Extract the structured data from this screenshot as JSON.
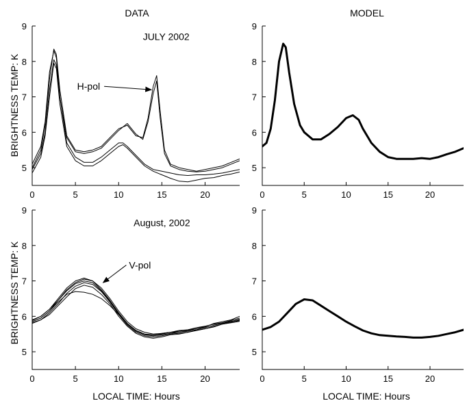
{
  "column_titles": [
    "DATA",
    "MODEL"
  ],
  "ylabel": "BRIGHTNESS TEMP:  K",
  "xlabel": "LOCAL TIME:  Hours",
  "colors": {
    "line": "#000000",
    "axis": "#000000",
    "background": "#ffffff"
  },
  "chart_data": [
    {
      "type": "line",
      "panel": "top-left",
      "title": "DATA",
      "ylabel": "BRIGHTNESS TEMP:  K",
      "xlim": [
        0,
        24
      ],
      "ylim": [
        4.5,
        9
      ],
      "xticks": [
        0,
        5,
        10,
        15,
        20
      ],
      "yticks": [
        5,
        6,
        7,
        8,
        9
      ],
      "annotations": [
        {
          "text": "JULY 2002",
          "x": 15.5,
          "y": 8.6
        },
        {
          "text": "H-pol",
          "x": 5.2,
          "y": 7.2,
          "arrow_to": [
            13.8,
            7.2
          ]
        }
      ],
      "series": [
        {
          "x": [
            0,
            1,
            1.5,
            2,
            2.5,
            2.8,
            3.2,
            4,
            5,
            6,
            7,
            8,
            9,
            10,
            11,
            12,
            12.8,
            13.4,
            14,
            14.4,
            14.8,
            15.3,
            16,
            17,
            18,
            19,
            20,
            21,
            22,
            23,
            24
          ],
          "y": [
            5.0,
            5.5,
            6.2,
            7.5,
            8.35,
            8.2,
            7.2,
            5.9,
            5.5,
            5.45,
            5.5,
            5.6,
            5.85,
            6.1,
            6.2,
            5.9,
            5.85,
            6.4,
            7.3,
            7.6,
            6.6,
            5.5,
            5.1,
            5.0,
            4.95,
            4.9,
            4.95,
            5.0,
            5.05,
            5.15,
            5.25
          ]
        },
        {
          "x": [
            0,
            1,
            1.5,
            2,
            2.5,
            2.8,
            3.2,
            4,
            5,
            6,
            7,
            8,
            9,
            10,
            11,
            12,
            12.8,
            13.4,
            14,
            14.4,
            14.8,
            15.3,
            16,
            17,
            18,
            19,
            20,
            21,
            22,
            23,
            24
          ],
          "y": [
            5.1,
            5.6,
            6.3,
            7.7,
            8.3,
            8.1,
            7.0,
            5.85,
            5.45,
            5.4,
            5.45,
            5.55,
            5.8,
            6.05,
            6.25,
            5.95,
            5.8,
            6.3,
            7.1,
            7.45,
            6.4,
            5.4,
            5.05,
            4.95,
            4.9,
            4.88,
            4.9,
            4.95,
            5.0,
            5.1,
            5.2
          ]
        },
        {
          "x": [
            0,
            1,
            1.5,
            2,
            2.5,
            2.8,
            3.2,
            4,
            5,
            6,
            7,
            8,
            9,
            10,
            10.5,
            11,
            12,
            13,
            14,
            15,
            16,
            17,
            18,
            19,
            20,
            21,
            22,
            23,
            24
          ],
          "y": [
            4.95,
            5.4,
            6.0,
            7.2,
            8.05,
            7.9,
            7.0,
            5.7,
            5.3,
            5.15,
            5.15,
            5.3,
            5.5,
            5.7,
            5.7,
            5.6,
            5.35,
            5.1,
            4.95,
            4.9,
            4.85,
            4.8,
            4.78,
            4.8,
            4.8,
            4.82,
            4.85,
            4.9,
            4.95
          ]
        },
        {
          "x": [
            0,
            1,
            1.5,
            2,
            2.5,
            2.8,
            3.2,
            4,
            5,
            6,
            7,
            8,
            9,
            10,
            10.5,
            11,
            12,
            13,
            14,
            15,
            16,
            17,
            18,
            19,
            20,
            21,
            22,
            23,
            24
          ],
          "y": [
            4.85,
            5.3,
            5.9,
            7.0,
            7.95,
            7.8,
            6.8,
            5.6,
            5.2,
            5.05,
            5.05,
            5.2,
            5.4,
            5.6,
            5.65,
            5.55,
            5.3,
            5.05,
            4.9,
            4.8,
            4.7,
            4.62,
            4.6,
            4.65,
            4.7,
            4.72,
            4.78,
            4.82,
            4.88
          ]
        }
      ]
    },
    {
      "type": "line",
      "panel": "top-right",
      "title": "MODEL",
      "xlim": [
        0,
        24
      ],
      "ylim": [
        4.5,
        9
      ],
      "xticks": [
        0,
        5,
        10,
        15,
        20
      ],
      "yticks": [
        5,
        6,
        7,
        8,
        9
      ],
      "series": [
        {
          "x": [
            0,
            0.5,
            1,
            1.5,
            2,
            2.5,
            2.8,
            3.2,
            3.8,
            4.5,
            5,
            6,
            7,
            8,
            9,
            10,
            10.8,
            11.5,
            12,
            13,
            14,
            15,
            16,
            17,
            18,
            19,
            20,
            21,
            22,
            23,
            24
          ],
          "y": [
            5.6,
            5.7,
            6.1,
            6.9,
            8.0,
            8.5,
            8.4,
            7.7,
            6.8,
            6.2,
            6.0,
            5.8,
            5.8,
            5.95,
            6.15,
            6.4,
            6.48,
            6.35,
            6.1,
            5.7,
            5.45,
            5.3,
            5.25,
            5.25,
            5.25,
            5.27,
            5.25,
            5.3,
            5.38,
            5.45,
            5.55
          ]
        }
      ]
    },
    {
      "type": "line",
      "panel": "bottom-left",
      "ylabel": "BRIGHTNESS TEMP:  K",
      "xlabel": "LOCAL TIME:  Hours",
      "xlim": [
        0,
        24
      ],
      "ylim": [
        4.5,
        9
      ],
      "xticks": [
        0,
        5,
        10,
        15,
        20
      ],
      "yticks": [
        5,
        6,
        7,
        8,
        9
      ],
      "annotations": [
        {
          "text": "August, 2002",
          "x": 15,
          "y": 8.55
        },
        {
          "text": "V-pol",
          "x": 11.2,
          "y": 7.35,
          "arrow_to": [
            8.2,
            6.95
          ]
        }
      ],
      "series": [
        {
          "x": [
            0,
            1,
            2,
            3,
            4,
            5,
            6,
            7,
            8,
            9,
            10,
            11,
            12,
            13,
            14,
            15,
            16,
            17,
            18,
            19,
            20,
            21,
            22,
            23,
            24
          ],
          "y": [
            5.85,
            5.95,
            6.15,
            6.45,
            6.75,
            6.95,
            7.05,
            7.0,
            6.8,
            6.5,
            6.15,
            5.85,
            5.65,
            5.55,
            5.5,
            5.52,
            5.55,
            5.55,
            5.6,
            5.65,
            5.7,
            5.8,
            5.85,
            5.9,
            6.0
          ]
        },
        {
          "x": [
            0,
            1,
            2,
            3,
            4,
            5,
            6,
            7,
            8,
            9,
            10,
            11,
            12,
            13,
            14,
            15,
            16,
            17,
            18,
            19,
            20,
            21,
            22,
            23,
            24
          ],
          "y": [
            5.9,
            6.0,
            6.2,
            6.5,
            6.8,
            7.0,
            7.08,
            7.0,
            6.75,
            6.45,
            6.1,
            5.8,
            5.6,
            5.5,
            5.45,
            5.5,
            5.55,
            5.6,
            5.62,
            5.65,
            5.72,
            5.78,
            5.82,
            5.88,
            5.95
          ]
        },
        {
          "x": [
            0,
            1,
            2,
            3,
            4,
            5,
            6,
            7,
            8,
            9,
            10,
            11,
            12,
            13,
            14,
            15,
            16,
            17,
            18,
            19,
            20,
            21,
            22,
            23,
            24
          ],
          "y": [
            5.8,
            5.9,
            6.1,
            6.35,
            6.65,
            6.85,
            6.95,
            6.9,
            6.7,
            6.4,
            6.05,
            5.75,
            5.55,
            5.45,
            5.42,
            5.45,
            5.5,
            5.52,
            5.55,
            5.6,
            5.65,
            5.72,
            5.78,
            5.83,
            5.88
          ]
        },
        {
          "x": [
            0,
            1,
            2,
            3,
            4,
            5,
            6,
            7,
            8,
            9,
            10,
            11,
            12,
            13,
            14,
            15,
            16,
            17,
            18,
            19,
            20,
            21,
            22,
            23,
            24
          ],
          "y": [
            5.85,
            5.95,
            6.15,
            6.4,
            6.62,
            6.7,
            6.68,
            6.62,
            6.5,
            6.3,
            6.05,
            5.8,
            5.6,
            5.5,
            5.48,
            5.52,
            5.55,
            5.58,
            5.62,
            5.68,
            5.72,
            5.78,
            5.82,
            5.86,
            5.9
          ]
        },
        {
          "x": [
            0,
            1,
            2,
            3,
            4,
            5,
            6,
            7,
            8,
            9,
            10,
            11,
            12,
            13,
            14,
            15,
            16,
            17,
            18,
            19,
            20,
            21,
            22,
            23,
            24
          ],
          "y": [
            5.82,
            5.9,
            6.05,
            6.3,
            6.55,
            6.78,
            6.88,
            6.82,
            6.62,
            6.35,
            6.0,
            5.72,
            5.52,
            5.42,
            5.38,
            5.42,
            5.48,
            5.5,
            5.55,
            5.6,
            5.65,
            5.7,
            5.78,
            5.82,
            5.86
          ]
        },
        {
          "x": [
            0,
            1,
            2,
            3,
            4,
            5,
            6,
            7,
            8,
            9,
            10,
            11,
            12,
            13,
            14,
            15,
            16,
            17,
            18,
            19,
            20,
            21,
            22,
            23,
            24
          ],
          "y": [
            5.88,
            6.0,
            6.2,
            6.45,
            6.72,
            6.92,
            7.0,
            6.95,
            6.72,
            6.42,
            6.08,
            5.78,
            5.58,
            5.48,
            5.45,
            5.48,
            5.52,
            5.55,
            5.58,
            5.62,
            5.68,
            5.75,
            5.8,
            5.85,
            5.92
          ]
        }
      ]
    },
    {
      "type": "line",
      "panel": "bottom-right",
      "xlabel": "LOCAL TIME:  Hours",
      "xlim": [
        0,
        24
      ],
      "ylim": [
        4.5,
        9
      ],
      "xticks": [
        0,
        5,
        10,
        15,
        20
      ],
      "yticks": [
        5,
        6,
        7,
        8,
        9
      ],
      "series": [
        {
          "x": [
            0,
            1,
            2,
            3,
            4,
            5,
            6,
            7,
            8,
            9,
            10,
            11,
            12,
            13,
            14,
            15,
            16,
            17,
            18,
            19,
            20,
            21,
            22,
            23,
            24
          ],
          "y": [
            5.62,
            5.7,
            5.85,
            6.1,
            6.35,
            6.48,
            6.45,
            6.3,
            6.15,
            6.0,
            5.85,
            5.72,
            5.6,
            5.52,
            5.47,
            5.45,
            5.43,
            5.42,
            5.4,
            5.4,
            5.42,
            5.45,
            5.5,
            5.55,
            5.62
          ]
        }
      ]
    }
  ]
}
